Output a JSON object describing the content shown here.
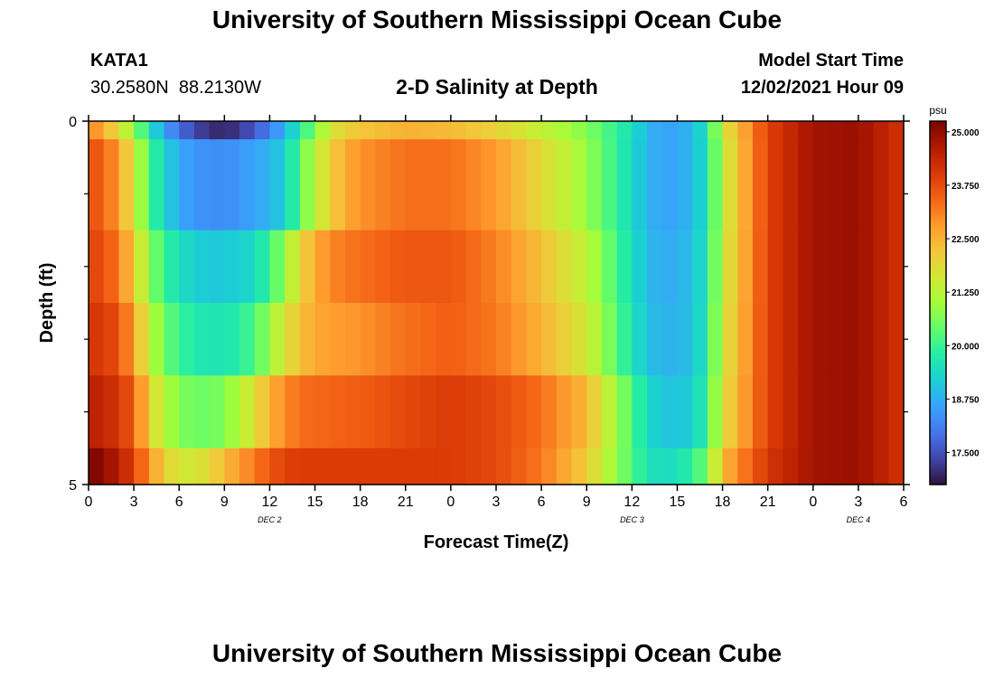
{
  "header": {
    "title": "University of Southern Mississippi Ocean Cube",
    "station": "KATA1",
    "coords_lat": "30.2580N",
    "coords_lon": "88.2130W",
    "subtitle": "2-D Salinity at Depth",
    "model_start_label": "Model Start Time",
    "model_start_value": "12/02/2021 Hour 09"
  },
  "footer": {
    "title": "University of Southern Mississippi Ocean Cube"
  },
  "colors": {
    "colormap": [
      "#30123b",
      "#4145ab",
      "#4675ed",
      "#39a2fc",
      "#1bcfd4",
      "#24eca6",
      "#61fc6c",
      "#a4fc3b",
      "#d1e834",
      "#f3c63a",
      "#fe9b2d",
      "#f36315",
      "#d93806",
      "#b11901",
      "#7a0402"
    ]
  },
  "chart_data": {
    "type": "heatmap",
    "xlabel": "Forecast Time(Z)",
    "ylabel": "Depth (ft)",
    "x_range": [
      0,
      54
    ],
    "y_range": [
      0,
      5
    ],
    "x_ticks": [
      0,
      3,
      6,
      9,
      12,
      15,
      18,
      21,
      24,
      27,
      30,
      33,
      36,
      39,
      42,
      45,
      48,
      51,
      54
    ],
    "x_tick_labels": [
      "0",
      "3",
      "6",
      "9",
      "12",
      "15",
      "18",
      "21",
      "0",
      "3",
      "6",
      "9",
      "12",
      "15",
      "18",
      "21",
      "0",
      "3",
      "6"
    ],
    "y_tick_labels": [
      {
        "value": 0,
        "label": "0"
      },
      {
        "value": 5,
        "label": "5"
      }
    ],
    "y_minor_ticks": [
      1,
      2,
      3,
      4
    ],
    "day_labels": [
      {
        "hour": 12,
        "label": "DEC 2"
      },
      {
        "hour": 36,
        "label": "DEC 3"
      },
      {
        "hour": 51,
        "label": "DEC 4"
      }
    ],
    "colorbar": {
      "unit": "psu",
      "min": 16.75,
      "max": 25.25,
      "ticks": [
        {
          "value": 25.0,
          "label": "25.000"
        },
        {
          "value": 23.75,
          "label": "23.750"
        },
        {
          "value": 22.5,
          "label": "22.500"
        },
        {
          "value": 21.25,
          "label": "21.250"
        },
        {
          "value": 20.0,
          "label": "20.000"
        },
        {
          "value": 18.75,
          "label": "18.750"
        },
        {
          "value": 17.5,
          "label": "17.500"
        }
      ]
    },
    "depth_layers": [
      0.25,
      1.5,
      2.5,
      3.5,
      4.5,
      5.0
    ],
    "time_knots": [
      0,
      1,
      2,
      3,
      4,
      5,
      6,
      7,
      8,
      9,
      10,
      11,
      12,
      13,
      14,
      15,
      16,
      17,
      18,
      21,
      24,
      27,
      30,
      33,
      36,
      37,
      38,
      39,
      40,
      41,
      42,
      45,
      48,
      51,
      54
    ],
    "salinity": [
      [
        23.1,
        22.6,
        21.8,
        20.9,
        19.6,
        18.6,
        17.9,
        17.4,
        17.1,
        17.0,
        17.2,
        17.6,
        18.1,
        18.8,
        19.7,
        20.7,
        21.6,
        22.0,
        22.2,
        22.5,
        22.4,
        22.0,
        21.4,
        20.7,
        19.5,
        18.8,
        18.6,
        18.6,
        18.9,
        19.6,
        21.6,
        23.9,
        24.8,
        24.9,
        24.1
      ],
      [
        23.8,
        23.4,
        22.8,
        21.6,
        20.2,
        19.3,
        18.7,
        18.4,
        18.3,
        18.3,
        18.4,
        18.6,
        18.8,
        19.2,
        20.3,
        21.3,
        22.0,
        22.6,
        22.9,
        23.3,
        23.3,
        22.8,
        21.9,
        20.9,
        19.4,
        18.8,
        18.6,
        18.6,
        18.9,
        19.5,
        21.4,
        23.9,
        24.8,
        24.9,
        24.1
      ],
      [
        23.9,
        23.7,
        23.2,
        22.1,
        20.8,
        20.0,
        19.5,
        19.2,
        19.1,
        19.1,
        19.2,
        19.4,
        20.0,
        20.9,
        21.9,
        22.6,
        23.0,
        23.2,
        23.3,
        23.6,
        23.6,
        23.1,
        22.3,
        21.3,
        19.5,
        18.9,
        18.7,
        18.7,
        19.0,
        19.6,
        21.5,
        23.9,
        24.8,
        24.9,
        24.1
      ],
      [
        24.1,
        24.0,
        23.7,
        22.7,
        21.4,
        20.5,
        20.0,
        19.7,
        19.6,
        19.6,
        19.8,
        20.2,
        20.9,
        21.7,
        22.3,
        22.6,
        22.8,
        22.8,
        22.9,
        23.3,
        23.5,
        23.2,
        22.5,
        21.6,
        19.6,
        19.0,
        18.8,
        18.8,
        19.0,
        19.7,
        21.6,
        23.9,
        24.8,
        24.9,
        24.1
      ],
      [
        24.5,
        24.4,
        24.1,
        23.5,
        22.1,
        21.2,
        20.7,
        20.5,
        20.5,
        20.7,
        21.2,
        21.8,
        22.5,
        23.0,
        23.3,
        23.4,
        23.4,
        23.5,
        23.5,
        23.8,
        24.0,
        23.8,
        23.3,
        22.4,
        20.2,
        19.4,
        19.1,
        19.0,
        19.2,
        19.9,
        21.8,
        23.9,
        24.8,
        24.9,
        24.1
      ],
      [
        25.3,
        25.0,
        24.6,
        23.9,
        22.9,
        22.1,
        21.6,
        21.6,
        21.9,
        22.4,
        22.8,
        23.2,
        23.6,
        23.9,
        24.0,
        24.0,
        24.0,
        24.0,
        24.0,
        24.0,
        24.0,
        23.8,
        23.2,
        22.1,
        20.2,
        19.6,
        19.4,
        19.5,
        19.9,
        20.6,
        22.4,
        24.1,
        24.8,
        24.9,
        24.1
      ]
    ]
  }
}
